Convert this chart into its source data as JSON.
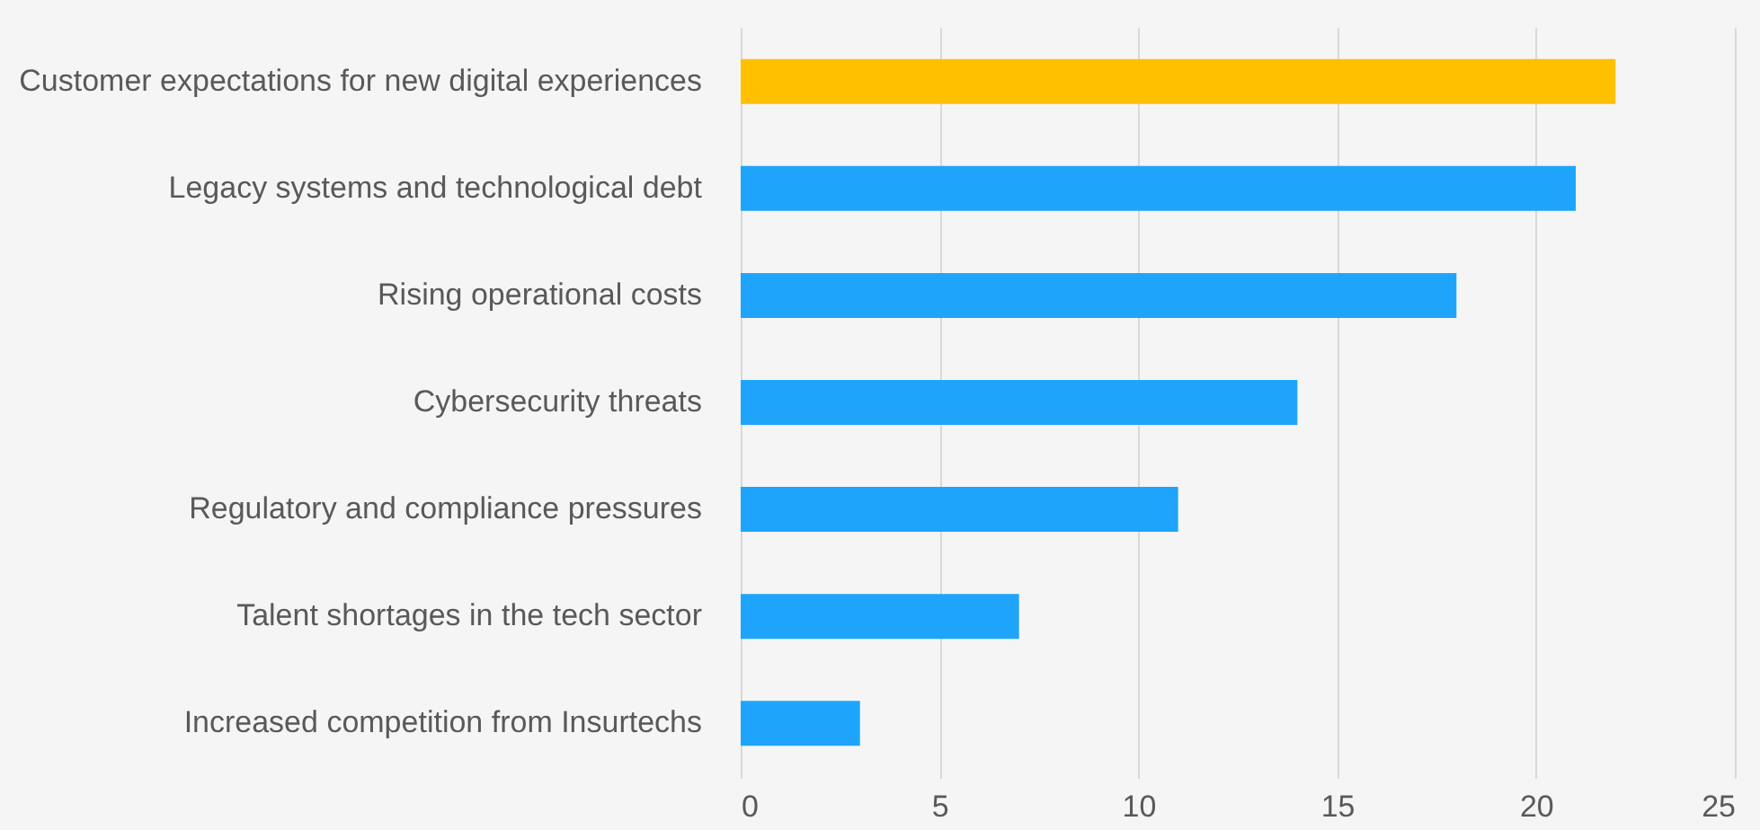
{
  "chart_data": {
    "type": "bar",
    "orientation": "horizontal",
    "categories": [
      "Customer expectations for new digital experiences",
      "Legacy systems and technological debt",
      "Rising operational costs",
      "Cybersecurity threats",
      "Regulatory and compliance pressures",
      "Talent shortages in the tech sector",
      "Increased competition from Insurtechs"
    ],
    "values": [
      22,
      21,
      18,
      14,
      11,
      7,
      3
    ],
    "colors": [
      "#ffc000",
      "#1ea5fb",
      "#1ea5fb",
      "#1ea5fb",
      "#1ea5fb",
      "#1ea5fb",
      "#1ea5fb"
    ],
    "xlim": [
      0,
      25
    ],
    "xticks": [
      0,
      5,
      10,
      15,
      20,
      25
    ],
    "grid": "x"
  }
}
